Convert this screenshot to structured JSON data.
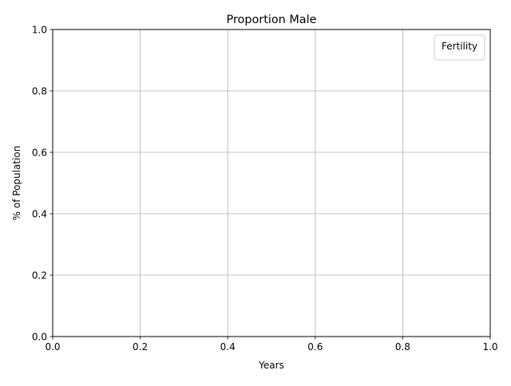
{
  "chart_data": {
    "type": "line",
    "title": "Proportion Male",
    "xlabel": "Years",
    "ylabel": "% of Population",
    "xlim": [
      0.0,
      1.0
    ],
    "ylim": [
      0.0,
      1.0
    ],
    "x_ticks": [
      "0.0",
      "0.2",
      "0.4",
      "0.6",
      "0.8",
      "1.0"
    ],
    "y_ticks": [
      "0.0",
      "0.2",
      "0.4",
      "0.6",
      "0.8",
      "1.0"
    ],
    "grid": true,
    "legend": {
      "title": "Fertility",
      "placement": "top-right",
      "entries": []
    },
    "series": []
  }
}
